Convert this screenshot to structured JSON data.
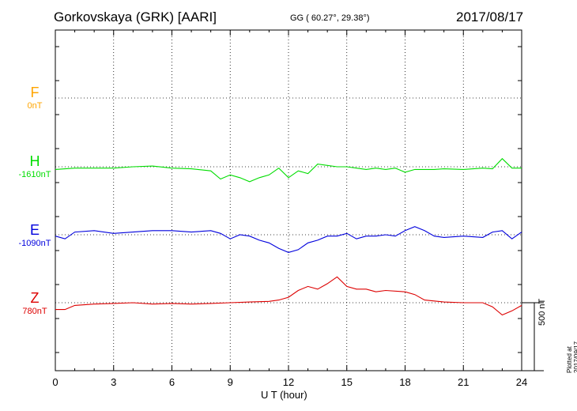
{
  "header": {
    "station": "Gorkovskaya (GRK)  [AARI]",
    "coords": "GG ( 60.27°,  29.38°)",
    "date": "2017/08/17"
  },
  "traces": [
    {
      "letter": "F",
      "baseline": "0nT",
      "color": "#FFA500"
    },
    {
      "letter": "H",
      "baseline": "-1610nT",
      "color": "#00DD00"
    },
    {
      "letter": "E",
      "baseline": "-1090nT",
      "color": "#0000DD"
    },
    {
      "letter": "Z",
      "baseline": "780nT",
      "color": "#DD0000"
    }
  ],
  "scale_bar": "500 nT",
  "plotted_note": "Plotted at 2017/09/17 01:32 UT",
  "chart_data": {
    "type": "line",
    "xlabel": "U T (hour)",
    "xlim": [
      0,
      24
    ],
    "xticks": [
      "0",
      "3",
      "6",
      "9",
      "12",
      "15",
      "18",
      "21",
      "24"
    ],
    "grid": true,
    "series": [
      {
        "name": "F",
        "x": [],
        "values": []
      },
      {
        "name": "H",
        "x": [
          0,
          1,
          2,
          3,
          4,
          5,
          6,
          7,
          8,
          8.5,
          9,
          9.5,
          10,
          10.5,
          11,
          11.5,
          12,
          12.5,
          13,
          13.5,
          14,
          14.5,
          15,
          15.5,
          16,
          16.5,
          17,
          17.5,
          18,
          18.5,
          19,
          19.5,
          20,
          21,
          22,
          22.5,
          23,
          23.5,
          24
        ],
        "values": [
          -20,
          -10,
          -10,
          -10,
          0,
          5,
          -10,
          -15,
          -30,
          -90,
          -60,
          -80,
          -110,
          -80,
          -60,
          -10,
          -80,
          -30,
          -50,
          20,
          10,
          0,
          0,
          -10,
          -20,
          -10,
          -20,
          -10,
          -40,
          -20,
          -20,
          -20,
          -15,
          -20,
          -10,
          -15,
          60,
          -10,
          -10
        ]
      },
      {
        "name": "E",
        "x": [
          0,
          0.5,
          1,
          2,
          3,
          4,
          5,
          6,
          7,
          8,
          8.5,
          9,
          9.5,
          10,
          10.5,
          11,
          11.5,
          12,
          12.5,
          13,
          13.5,
          14,
          14.5,
          15,
          15.5,
          16,
          16.5,
          17,
          17.5,
          18,
          18.5,
          19,
          19.5,
          20,
          21,
          22,
          22.5,
          23,
          23.5,
          24
        ],
        "values": [
          -10,
          -30,
          20,
          30,
          10,
          20,
          30,
          30,
          20,
          30,
          10,
          -30,
          0,
          -10,
          -40,
          -60,
          -100,
          -130,
          -110,
          -60,
          -40,
          -10,
          -10,
          10,
          -30,
          -10,
          -10,
          0,
          -10,
          30,
          60,
          30,
          -10,
          -20,
          -10,
          -20,
          20,
          30,
          -30,
          20
        ]
      },
      {
        "name": "Z",
        "x": [
          0,
          0.5,
          1,
          2,
          3,
          4,
          5,
          6,
          7,
          8,
          9,
          10,
          11,
          11.5,
          12,
          12.5,
          13,
          13.5,
          14,
          14.5,
          15,
          15.5,
          16,
          16.5,
          17,
          18,
          18.5,
          19,
          20,
          21,
          22,
          22.5,
          23,
          23.5,
          24
        ],
        "values": [
          -50,
          -50,
          -20,
          -10,
          -5,
          0,
          -10,
          -5,
          -10,
          -5,
          0,
          5,
          10,
          20,
          40,
          90,
          120,
          100,
          140,
          190,
          120,
          100,
          100,
          80,
          90,
          80,
          60,
          20,
          5,
          0,
          0,
          -30,
          -90,
          -60,
          -20
        ]
      }
    ]
  }
}
